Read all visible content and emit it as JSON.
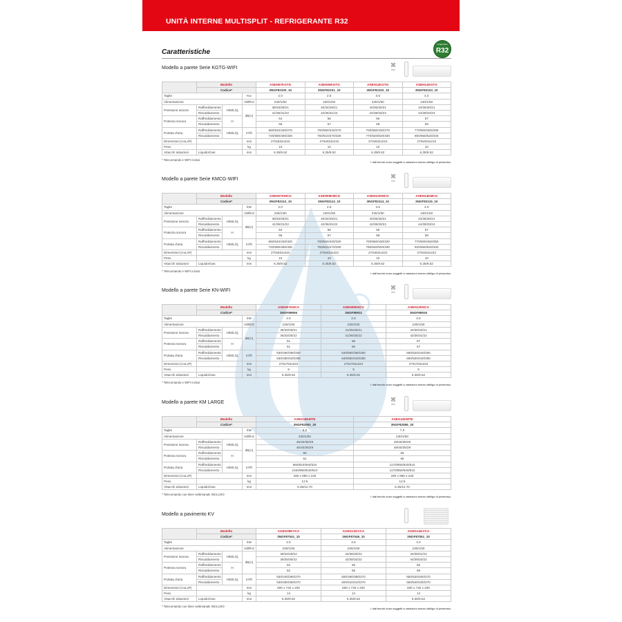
{
  "header": {
    "title": "UNITÀ INTERNE MULTISPLIT - REFRIGERANTE R32",
    "color": "#e30613"
  },
  "caratteristiche": "Caratteristiche",
  "badge": {
    "small": "refrigerante",
    "label": "R32",
    "color": "#2e7d32"
  },
  "labels": {
    "modello": "Modello",
    "codice": "Codice*",
    "taglie": "Taglie",
    "alimentazione": "Alimentazione",
    "pressione": "Pressione sonora",
    "potenza": "Potenza sonora",
    "portata": "Portata d'aria",
    "dimensioni": "Dimensioni (AxLxP)",
    "peso": "Peso",
    "attacchi": "Attacchi tubazioni",
    "raffreddamento": "Raffreddamento",
    "riscaldamento": "Riscaldamento",
    "hmlq": "H/M/L/Q",
    "h": "H",
    "liquido": "Liquido/Gas",
    "disclaimer": "I dati tecnici sono soggetti a variazioni senza obbligo di preavviso.",
    "wifi": "WiFi"
  },
  "sections": [
    {
      "title": "Modello a parete Serie KGTG-WIFI",
      "product": "wall-unit",
      "units": {
        "taglie": "Kw",
        "alim": "V/Ø/Hz",
        "db": "dB(A)",
        "air": "m³/h",
        "dim": "mm",
        "kg": "kg",
        "att": "mm"
      },
      "models": [
        "ASEH07KGTG",
        "ASEH09KGTG",
        "ASEH12KGTG",
        "ASEH14KGTG"
      ],
      "codes": [
        "3NGF82100_10",
        "3NGF82101_10",
        "3NGF82102_10",
        "3NGF82103_10"
      ],
      "taglie": [
        "2.0",
        "2.5",
        "3.5",
        "4.0"
      ],
      "alimentazione": [
        "230/1/50",
        "230/1/50",
        "230/1/50",
        "230/1/50"
      ],
      "pressione_raff": [
        "38/33/29/21",
        "40/34/29/21",
        "40/35/30/21",
        "43/36/30/21"
      ],
      "pressione_risc": [
        "41/35/31/22",
        "42/36/31/22",
        "42/38/33/22",
        "44/39/33/24"
      ],
      "potenza_raff": [
        "54",
        "55",
        "56",
        "57"
      ],
      "potenza_risc": [
        "56",
        "57",
        "58",
        "59"
      ],
      "portata_raff": [
        "650/540/430/270",
        "700/560/430/270",
        "700/560/430/270",
        "770/600/450/280"
      ],
      "portata_risc": [
        "720/580/460/330",
        "750/610/470/330",
        "770/640/520/330",
        "800/660/520/340"
      ],
      "dimensioni": [
        "270x834x215",
        "270x834x215",
        "270x834x215",
        "270x834x215"
      ],
      "peso": [
        "10",
        "10",
        "10",
        "10"
      ],
      "attacchi": [
        "6.35/9.52",
        "6.35/9.52",
        "6.35/9.52",
        "6.35/9.52"
      ],
      "note": "* Telecomando e WIFI inclusi"
    },
    {
      "title": "Modello a parete Serie KMCG-WIFI",
      "product": "wall-unit",
      "units": {
        "taglie": "kW",
        "alim": "V/Ø/Hz",
        "db": "dB(A)",
        "air": "m³/h",
        "dim": "mm",
        "kg": "kg",
        "att": "mm"
      },
      "models": [
        "ASEH07KMCG",
        "ASEH09KMCG",
        "ASEH12KMCG",
        "ASEH14KMCG"
      ],
      "codes": [
        "3NGF82112_10",
        "3NGF82113_10",
        "3NGF82114_10",
        "3NGF82115_10"
      ],
      "taglie": [
        "2.0",
        "2.5",
        "3.5",
        "4.0"
      ],
      "alimentazione": [
        "230/1/50",
        "230/1/50",
        "230/1/50",
        "230/1/50"
      ],
      "pressione_raff": [
        "38/33/29/21",
        "40/34/29/21",
        "40/35/30/21",
        "43/36/30/21"
      ],
      "pressione_risc": [
        "41/35/31/22",
        "42/36/31/22",
        "42/38/33/22",
        "44/39/33/24"
      ],
      "potenza_raff": [
        "54",
        "55",
        "55",
        "57"
      ],
      "potenza_risc": [
        "56",
        "57",
        "58",
        "59"
      ],
      "portata_raff": [
        "650/540/430/320",
        "700/560/430/320",
        "700/560/430/320",
        "770/600/450/350"
      ],
      "portata_risc": [
        "720/580/460/330",
        "750/610/470/330",
        "780/640/520/330",
        "820/660/520/340"
      ],
      "dimensioni": [
        "270x834x222",
        "270x834x222",
        "270x834x222",
        "270x834x222"
      ],
      "peso": [
        "10",
        "10",
        "10",
        "10"
      ],
      "attacchi": [
        "6.35/9.52",
        "6.35/9.52",
        "6.35/9.52",
        "6.35/9.52"
      ],
      "note": "* Telecomando e WIFI inclusi"
    },
    {
      "title": "Modello a parete Serie KN-WIFI",
      "product": "wall-unit",
      "units": {
        "taglie": "kW",
        "alim": "V/Ø/Hz",
        "db": "dB(A)",
        "air": "m³/h",
        "dim": "mm",
        "kg": "kg",
        "att": "mm"
      },
      "models": [
        "ASEH07KNCA",
        "ASEH09KNCA",
        "ASEH12KNCA"
      ],
      "codes": [
        "3NGF89906",
        "3NGF89911",
        "3NGF89916"
      ],
      "taglie": [
        "2.0",
        "2.5",
        "3.5"
      ],
      "alimentazione": [
        "230/1/50",
        "230/1/50",
        "230/1/50"
      ],
      "pressione_raff": [
        "36/33/28/21",
        "41/35/28/21",
        "42/36/32/21"
      ],
      "pressione_risc": [
        "36/33/30/22",
        "41/36/30/22",
        "42/35/31/22"
      ],
      "potenza_raff": [
        "51",
        "56",
        "57"
      ],
      "potenza_risc": [
        "51",
        "56",
        "57"
      ],
      "portata_raff": [
        "530/460/390/250",
        "640/560/390/250",
        "660/520/440/250"
      ],
      "portata_risc": [
        "530/460/420/280",
        "640/560/420/280",
        "660/520/440/280"
      ],
      "dimensioni": [
        "270x784x222",
        "270x784x222",
        "270x784x222"
      ],
      "peso": [
        "9",
        "9",
        "9"
      ],
      "attacchi": [
        "6.35/9.52",
        "6.35/9.52",
        "6.35/9.52"
      ],
      "note": "* Telecomando e WIFI inclusi"
    },
    {
      "title": "Modello a parete KM LARGE",
      "product": "wall-unit",
      "units": {
        "taglie": "kW",
        "alim": "V/Ø/Hz",
        "db": "dB(A)",
        "air": "m³/h",
        "dim": "mm",
        "kg": "kg",
        "att": "mm"
      },
      "models": [
        "ASEG18KMTE",
        "ASEG24KMTE"
      ],
      "codes": [
        "3NGF82083_20",
        "3NGF82086_20"
      ],
      "taglie": [
        "5.0",
        "7.0"
      ],
      "alimentazione": [
        "230/1/50",
        "230/1/50"
      ],
      "pressione_raff": [
        "45/40/35/29",
        "49/40/35/29"
      ],
      "pressione_risc": [
        "46/40/35/29",
        "49/40/35/29"
      ],
      "potenza_raff": [
        "60",
        "65"
      ],
      "potenza_risc": [
        "61",
        "65"
      ],
      "portata_raff": [
        "960/810/640/510",
        "1170/850/640/510"
      ],
      "portata_risc": [
        "1020/850/640/510",
        "1170/850/640/510"
      ],
      "dimensioni": [
        "280 x 980 x 240",
        "280 x 980 x 240"
      ],
      "peso": [
        "12.5",
        "12.5"
      ],
      "attacchi": [
        "6.35/12.70",
        "6.35/12.70"
      ],
      "note": "* Telecomando con timer settimanale INCLUSO"
    },
    {
      "title": "Modello a pavimento KV",
      "product": "floor-unit",
      "units": {
        "taglie": "kW",
        "alim": "V/Ø/Hz",
        "db": "dB(A)",
        "air": "m³/h",
        "dim": "mm",
        "kg": "kg",
        "att": "mm"
      },
      "models": [
        "AGEG09KVCA",
        "AGEG12KVCA",
        "AGEG14KVCA"
      ],
      "codes": [
        "3NGF87041_10",
        "3NGF87046_10",
        "3NGF87051_10"
      ],
      "taglie": [
        "2.5",
        "3.5",
        "4.0"
      ],
      "alimentazione": [
        "230/1/50",
        "230/1/50",
        "230/1/50"
      ],
      "pressione_raff": [
        "39/34/28/22",
        "42/36/30/22",
        "44/38/31/22"
      ],
      "pressione_risc": [
        "39/35/30/22",
        "42/38/32/22",
        "44/39/32/22"
      ],
      "potenza_raff": [
        "52",
        "55",
        "56"
      ],
      "potenza_risc": [
        "52",
        "55",
        "56"
      ],
      "portata_raff": [
        "530/440/360/270",
        "600/490/380/270",
        "650/520/400/270"
      ],
      "portata_risc": [
        "530/460/360/270",
        "600/510/410/270",
        "650/540/430/270"
      ],
      "dimensioni": [
        "600 x 740 x 200",
        "600 x 740 x 200",
        "600 x 740 x 200"
      ],
      "peso": [
        "14",
        "14",
        "14"
      ],
      "attacchi": [
        "6.35/9.52",
        "6.35/9.52",
        "6.35/9.52"
      ],
      "note": "* Telecomando con timer settimanale INCLUSO"
    }
  ]
}
